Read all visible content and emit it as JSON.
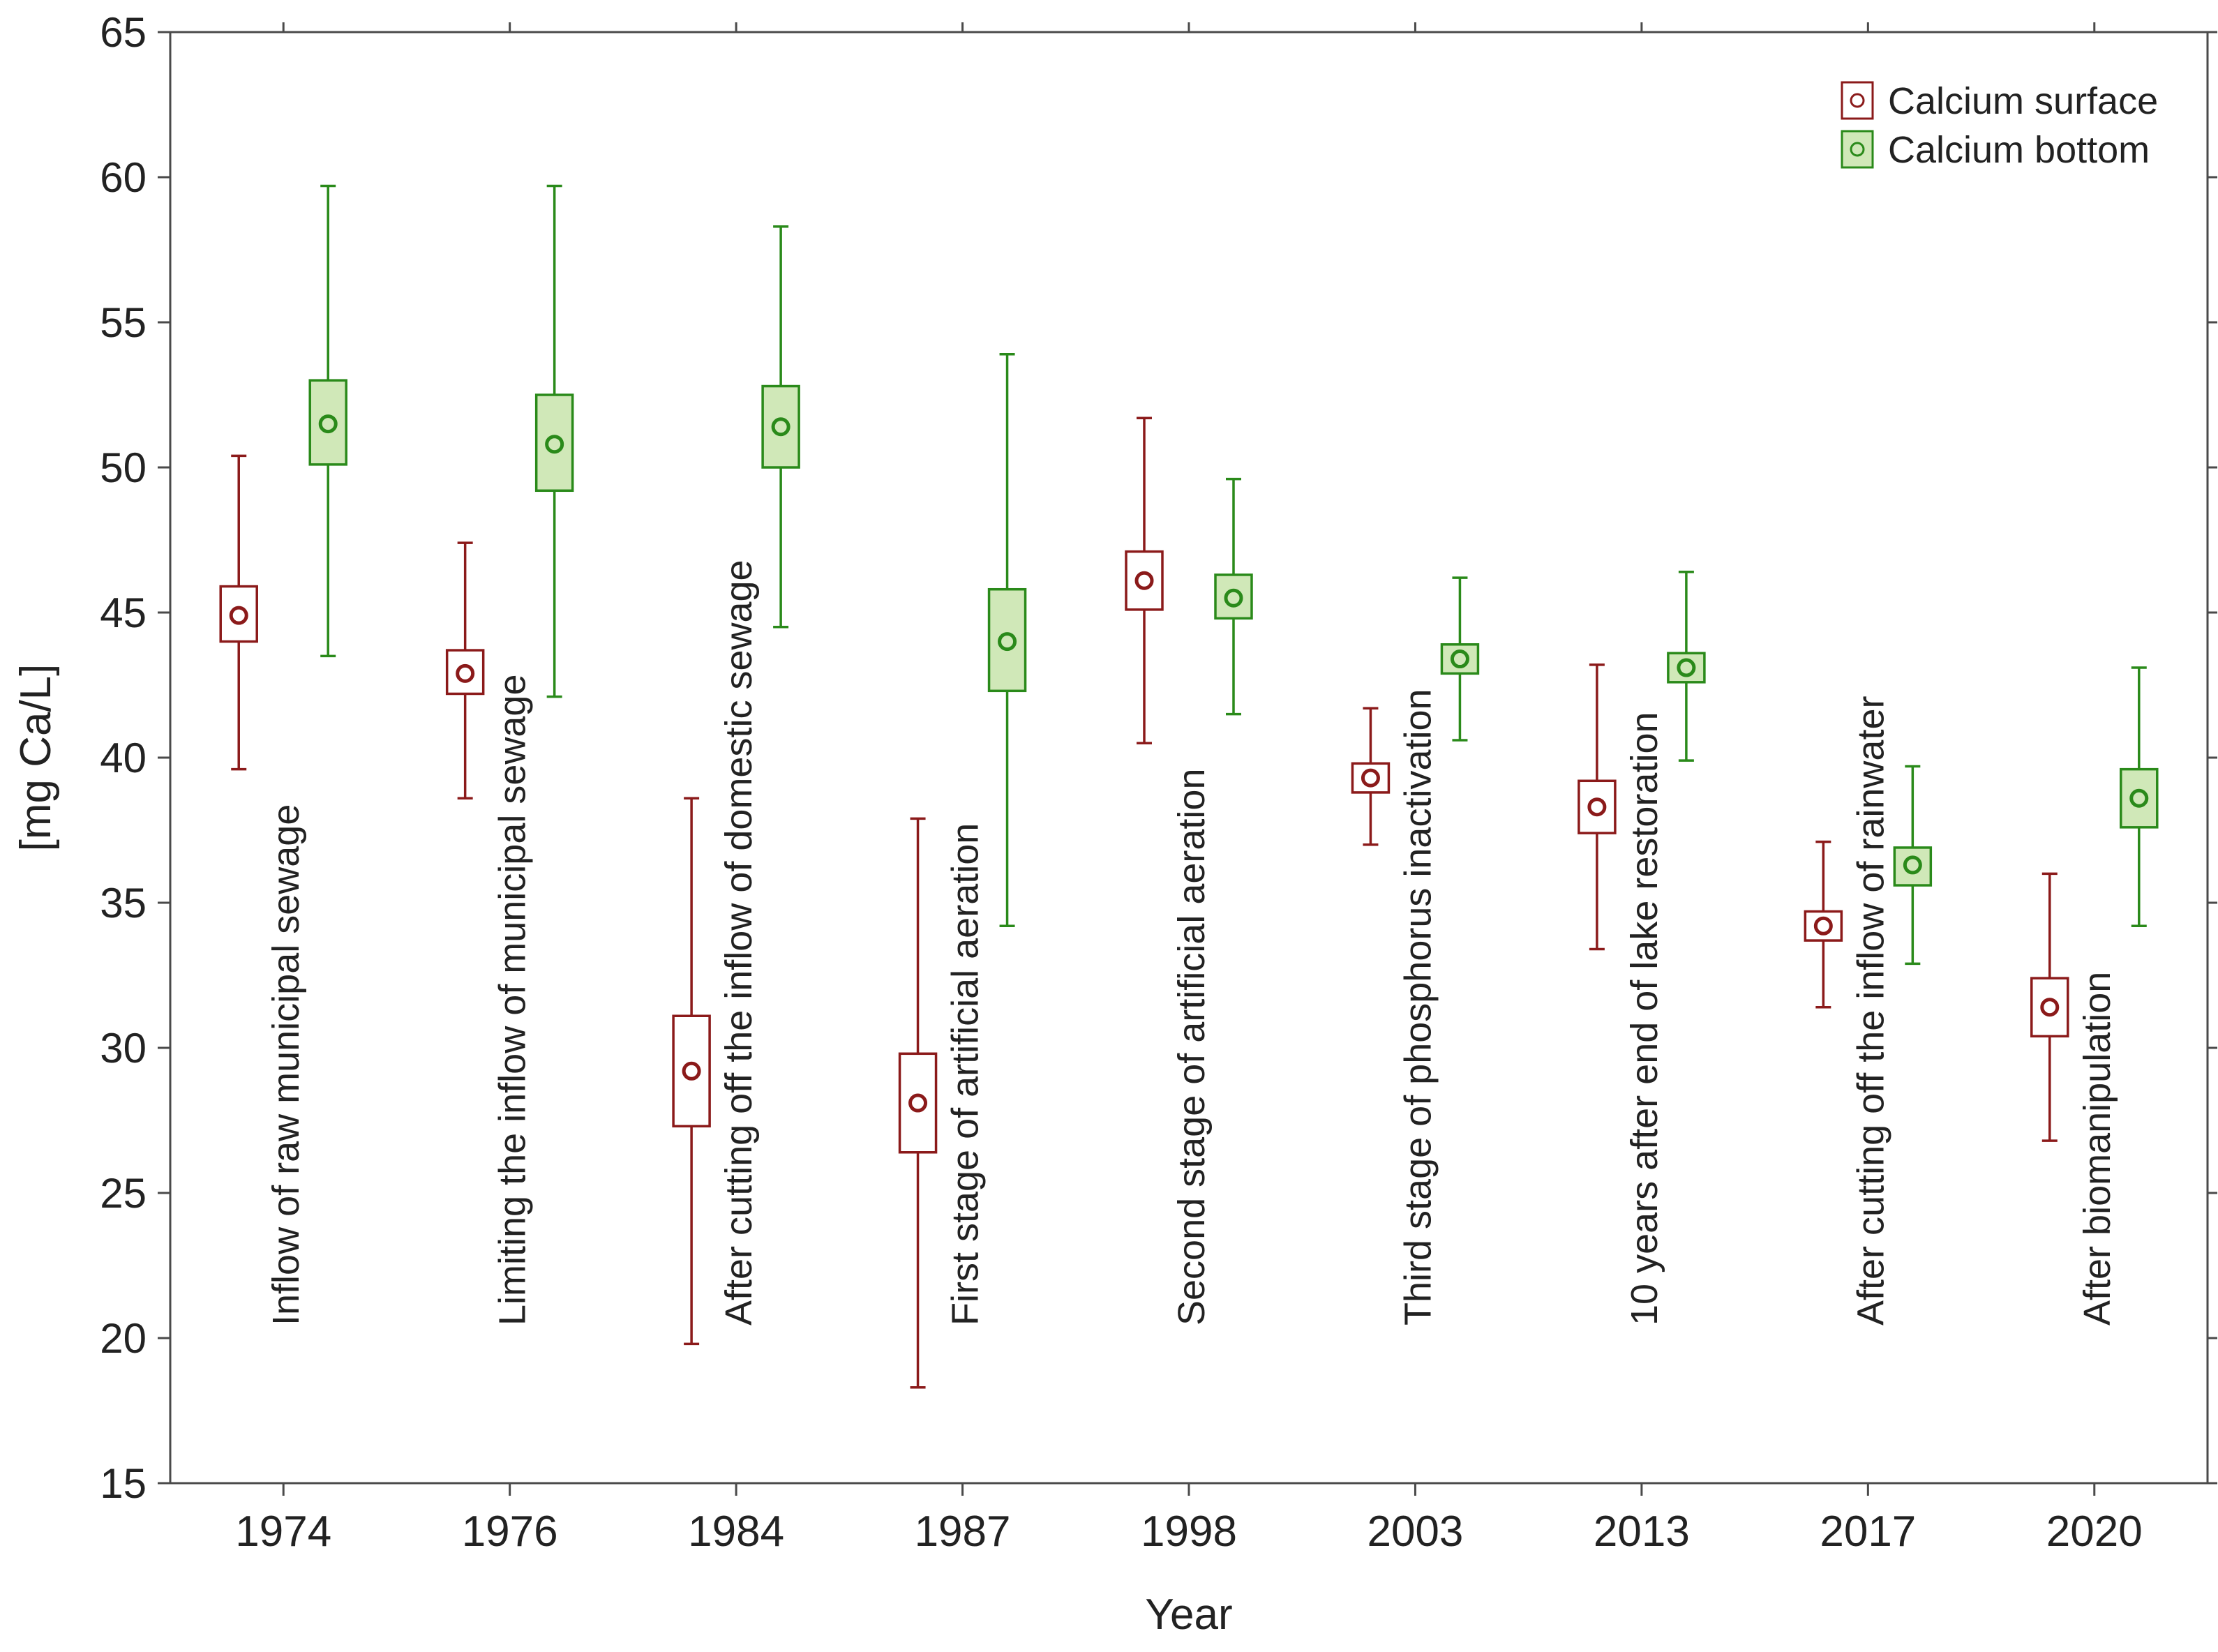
{
  "chart_data": {
    "type": "box",
    "xlabel": "Year",
    "ylabel": "[mg Ca/L]",
    "ylim": [
      15,
      65
    ],
    "yticks": [
      15,
      20,
      25,
      30,
      35,
      40,
      45,
      50,
      55,
      60,
      65
    ],
    "categories": [
      "1974",
      "1976",
      "1984",
      "1987",
      "1998",
      "2003",
      "2013",
      "2017",
      "2020"
    ],
    "annotations": [
      "Inflow of raw municipal sewage",
      "Limiting the inflow of municipal sewage",
      "After cutting off the inflow of domestic sewage",
      "First stage of artificial aeration",
      "Second stage of artificial aeration",
      "Third stage of phosphorus inactivation",
      "10 years after end of lake restoration",
      "After cutting off the inflow of rainwater",
      "After biomanipulation"
    ],
    "series": [
      {
        "name": "Calcium surface",
        "stroke": "#8b1a1a",
        "fill": "#ffffff",
        "mean": [
          44.9,
          42.9,
          29.2,
          28.1,
          46.1,
          39.3,
          38.3,
          34.2,
          31.4
        ],
        "box_low": [
          44.0,
          42.2,
          27.3,
          26.4,
          45.1,
          38.8,
          37.4,
          33.7,
          30.4
        ],
        "box_high": [
          45.9,
          43.7,
          31.1,
          29.8,
          47.1,
          39.8,
          39.2,
          34.7,
          32.4
        ],
        "whisker_low": [
          39.6,
          38.6,
          19.8,
          18.3,
          40.5,
          37.0,
          33.4,
          31.4,
          26.8
        ],
        "whisker_high": [
          50.4,
          47.4,
          38.6,
          37.9,
          51.7,
          41.7,
          43.2,
          37.1,
          36.0
        ]
      },
      {
        "name": "Calcium bottom",
        "stroke": "#2a8a1a",
        "fill": "#d0e8b8",
        "mean": [
          51.5,
          50.8,
          51.4,
          44.0,
          45.5,
          43.4,
          43.1,
          36.3,
          38.6
        ],
        "box_low": [
          50.1,
          49.2,
          50.0,
          42.3,
          44.8,
          42.9,
          42.6,
          35.6,
          37.6
        ],
        "box_high": [
          53.0,
          52.5,
          52.8,
          45.8,
          46.3,
          43.9,
          43.6,
          36.9,
          39.6
        ],
        "whisker_low": [
          43.5,
          42.1,
          44.5,
          34.2,
          41.5,
          40.6,
          39.9,
          32.9,
          34.2
        ],
        "whisker_high": [
          59.7,
          59.7,
          58.3,
          53.9,
          49.6,
          46.2,
          46.4,
          39.7,
          43.1
        ]
      }
    ],
    "legend_position": "top-right"
  }
}
